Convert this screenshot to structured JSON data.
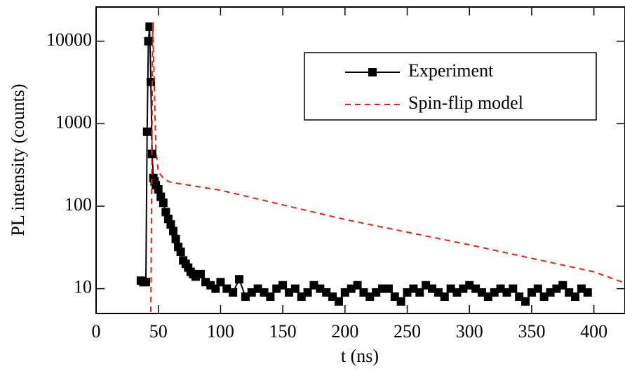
{
  "chart_data": {
    "type": "line",
    "xlabel": "t (ns)",
    "ylabel": "PL intensity (counts)",
    "xlim": [
      0,
      425
    ],
    "ylim": [
      5,
      26000
    ],
    "ylog": true,
    "xticks": [
      0,
      50,
      100,
      150,
      200,
      250,
      300,
      350,
      400
    ],
    "yticks": [
      10,
      100,
      1000,
      10000
    ],
    "legend": "upper right",
    "series": [
      {
        "name": "Experiment",
        "color": "#000000",
        "linestyle": "solid",
        "marker": "square",
        "x": [
          36,
          38,
          40,
          41,
          42,
          43,
          44,
          45,
          46,
          47,
          48,
          50,
          52,
          54,
          56,
          58,
          60,
          62,
          64,
          66,
          68,
          70,
          72,
          74,
          76,
          78,
          80,
          84,
          88,
          92,
          96,
          100,
          105,
          110,
          115,
          120,
          125,
          130,
          135,
          140,
          145,
          150,
          155,
          160,
          165,
          170,
          175,
          180,
          185,
          190,
          195,
          200,
          205,
          210,
          215,
          220,
          225,
          230,
          235,
          240,
          245,
          250,
          255,
          260,
          265,
          270,
          275,
          280,
          285,
          290,
          295,
          300,
          305,
          310,
          315,
          320,
          325,
          330,
          335,
          340,
          345,
          350,
          355,
          360,
          365,
          370,
          375,
          380,
          385,
          390,
          395
        ],
        "values": [
          12.5,
          12,
          12,
          800,
          10000,
          15000,
          3200,
          430,
          220,
          200,
          180,
          160,
          130,
          110,
          85,
          70,
          60,
          50,
          40,
          32,
          28,
          22,
          20,
          18,
          16,
          15,
          14,
          15,
          12,
          11,
          10,
          12,
          10,
          9,
          13,
          8,
          9,
          10,
          9,
          8,
          10,
          11,
          9,
          10,
          8,
          9,
          11,
          10,
          9,
          8,
          7,
          9,
          10,
          11,
          9,
          8,
          9,
          10,
          10,
          8,
          7,
          9,
          10,
          9,
          11,
          10,
          9,
          8,
          10,
          9,
          10,
          11,
          10,
          9,
          8,
          9,
          10,
          9,
          10,
          8,
          7,
          9,
          10,
          8,
          9,
          10,
          11,
          9,
          8,
          10,
          9
        ]
      },
      {
        "name": "Spin-flip model",
        "color": "#e8201c",
        "linestyle": "dashed",
        "marker": "none",
        "x": [
          44,
          45.5,
          48,
          50,
          55,
          60,
          100,
          200,
          300,
          400,
          425
        ],
        "values": [
          5.2,
          17000,
          500,
          260,
          210,
          195,
          156,
          69,
          34,
          16,
          11.7
        ]
      }
    ]
  }
}
